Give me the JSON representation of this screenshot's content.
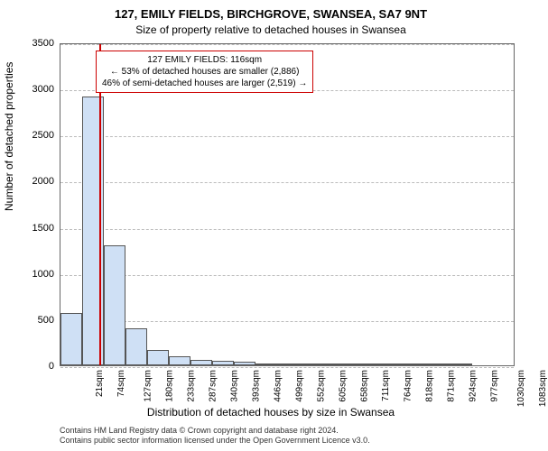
{
  "title": "127, EMILY FIELDS, BIRCHGROVE, SWANSEA, SA7 9NT",
  "subtitle": "Size of property relative to detached houses in Swansea",
  "chart": {
    "type": "histogram",
    "ylabel": "Number of detached properties",
    "xlabel": "Distribution of detached houses by size in Swansea",
    "ylim": [
      0,
      3500
    ],
    "ytick_step": 500,
    "yticks": [
      0,
      500,
      1000,
      1500,
      2000,
      2500,
      3000,
      3500
    ],
    "x_categories": [
      "21sqm",
      "74sqm",
      "127sqm",
      "180sqm",
      "233sqm",
      "287sqm",
      "340sqm",
      "393sqm",
      "446sqm",
      "499sqm",
      "552sqm",
      "605sqm",
      "658sqm",
      "711sqm",
      "764sqm",
      "818sqm",
      "871sqm",
      "924sqm",
      "977sqm",
      "1030sqm",
      "1083sqm"
    ],
    "bar_values": [
      570,
      2910,
      1300,
      400,
      170,
      100,
      60,
      50,
      40,
      20,
      10,
      20,
      10,
      5,
      5,
      5,
      5,
      5,
      5,
      0,
      0
    ],
    "bar_fill": "#cfe0f5",
    "bar_border": "#555555",
    "background_color": "#ffffff",
    "grid_color": "#bbbbbb",
    "marker_line_color": "#cc0000",
    "marker_x_index": 1.8,
    "callout_border": "#cc0000",
    "callout_bg": "#ffffff"
  },
  "callout": {
    "line1": "127 EMILY FIELDS: 116sqm",
    "line2": "← 53% of detached houses are smaller (2,886)",
    "line3": "46% of semi-detached houses are larger (2,519) →"
  },
  "footer": {
    "line1": "Contains HM Land Registry data © Crown copyright and database right 2024.",
    "line2": "Contains public sector information licensed under the Open Government Licence v3.0."
  }
}
